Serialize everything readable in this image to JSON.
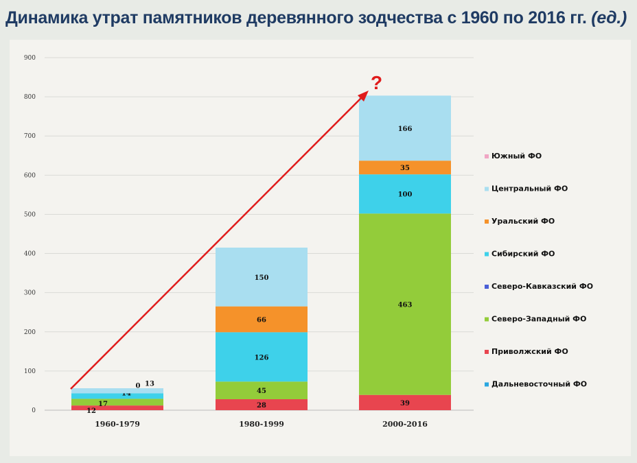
{
  "title": {
    "main": "Динамика  утрат памятников деревянного зодчества с 1960 по 2016 гг.",
    "unit": "(ед.)"
  },
  "chart_data": {
    "type": "bar",
    "stacked": true,
    "categories": [
      "1960-1979",
      "1980-1999",
      "2000-2016"
    ],
    "ylim": [
      0,
      900
    ],
    "yticks": [
      0,
      100,
      200,
      300,
      400,
      500,
      600,
      700,
      800,
      900
    ],
    "grid": true,
    "legend_position": "right",
    "series": [
      {
        "name": "Дальневосточный ФО",
        "color": "#2aa7e0",
        "values": [
          null,
          null,
          null
        ]
      },
      {
        "name": "Приволжский ФО",
        "color": "#e8454f",
        "values": [
          12,
          28,
          39
        ]
      },
      {
        "name": "Северо-Западный ФО",
        "color": "#93cc3a",
        "values": [
          17,
          45,
          463
        ]
      },
      {
        "name": "Северо-Кавказский ФО",
        "color": "#4a5fd6",
        "values": [
          null,
          null,
          null
        ]
      },
      {
        "name": "Сибирский ФО",
        "color": "#3ed1ea",
        "values": [
          14,
          126,
          100
        ]
      },
      {
        "name": "Уральский ФО",
        "color": "#f5922a",
        "values": [
          0,
          66,
          35
        ]
      },
      {
        "name": "Центральный ФО",
        "color": "#a9def0",
        "values": [
          13,
          150,
          166
        ]
      },
      {
        "name": "Южный ФО",
        "color": "#f0a6c4",
        "values": [
          null,
          null,
          null
        ]
      }
    ],
    "legend_order": [
      "Южный ФО",
      "Центральный ФО",
      "Уральский ФО",
      "Сибирский ФО",
      "Северо-Кавказский ФО",
      "Северо-Западный ФО",
      "Приволжский ФО",
      "Дальневосточный ФО"
    ],
    "annotations": [
      {
        "type": "arrow",
        "color": "#e01b1b",
        "from_category": "1960-1979",
        "to_category": "2000-2016",
        "text": "?"
      }
    ]
  }
}
